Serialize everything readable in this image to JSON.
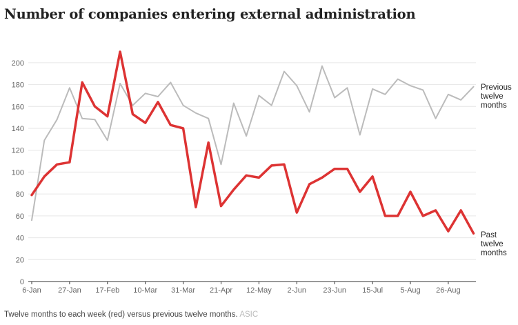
{
  "chart_data": {
    "type": "line",
    "title": "Number of companies entering external administration",
    "caption": "Twelve months to each week (red) versus previous twelve months.",
    "source": "ASIC",
    "xlabel": "",
    "ylabel": "",
    "ylim": [
      0,
      210
    ],
    "yticks": [
      0,
      20,
      40,
      60,
      80,
      100,
      120,
      140,
      160,
      180,
      200
    ],
    "xtick_labels": [
      "6-Jan",
      "27-Jan",
      "17-Feb",
      "10-Mar",
      "31-Mar",
      "21-Apr",
      "12-May",
      "2-Jun",
      "23-Jun",
      "15-Jul",
      "5-Aug",
      "26-Aug"
    ],
    "grid": true,
    "series": [
      {
        "name": "Previous twelve months",
        "label_lines": [
          "Previous",
          "twelve",
          "months"
        ],
        "color": "#bbbbbb",
        "values": [
          56,
          129,
          148,
          177,
          149,
          148,
          129,
          181,
          161,
          172,
          169,
          182,
          161,
          154,
          149,
          107,
          163,
          133,
          170,
          161,
          192,
          179,
          155,
          197,
          168,
          177,
          134,
          176,
          171,
          185,
          179,
          175,
          149,
          171,
          166,
          178
        ]
      },
      {
        "name": "Past twelve months",
        "label_lines": [
          "Past",
          "twelve",
          "months"
        ],
        "color": "#dd3333",
        "values": [
          79,
          96,
          107,
          109,
          182,
          160,
          151,
          210,
          153,
          145,
          164,
          143,
          140,
          68,
          127,
          69,
          84,
          97,
          95,
          106,
          107,
          63,
          89,
          95,
          103,
          103,
          82,
          96,
          60,
          60,
          82,
          60,
          65,
          46,
          65,
          44
        ]
      }
    ]
  }
}
